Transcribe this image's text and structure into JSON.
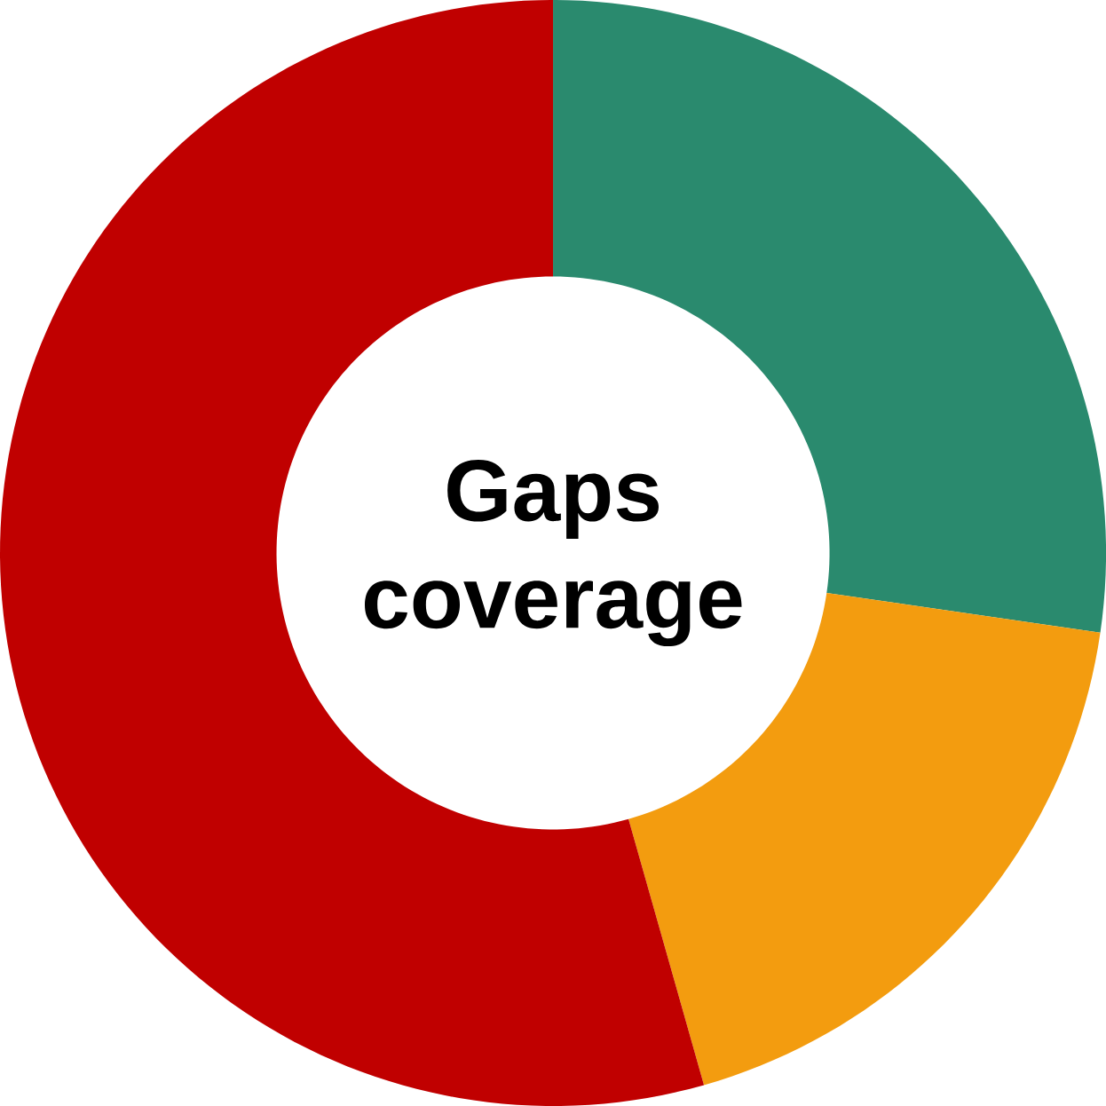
{
  "chart_data": {
    "type": "donut",
    "title": "Gaps coverage",
    "categories": [
      null,
      null,
      null
    ],
    "values": [
      27.3,
      18.3,
      54.4
    ],
    "colors": [
      "#2a8a6e",
      "#f39c0f",
      "#c00000"
    ]
  }
}
